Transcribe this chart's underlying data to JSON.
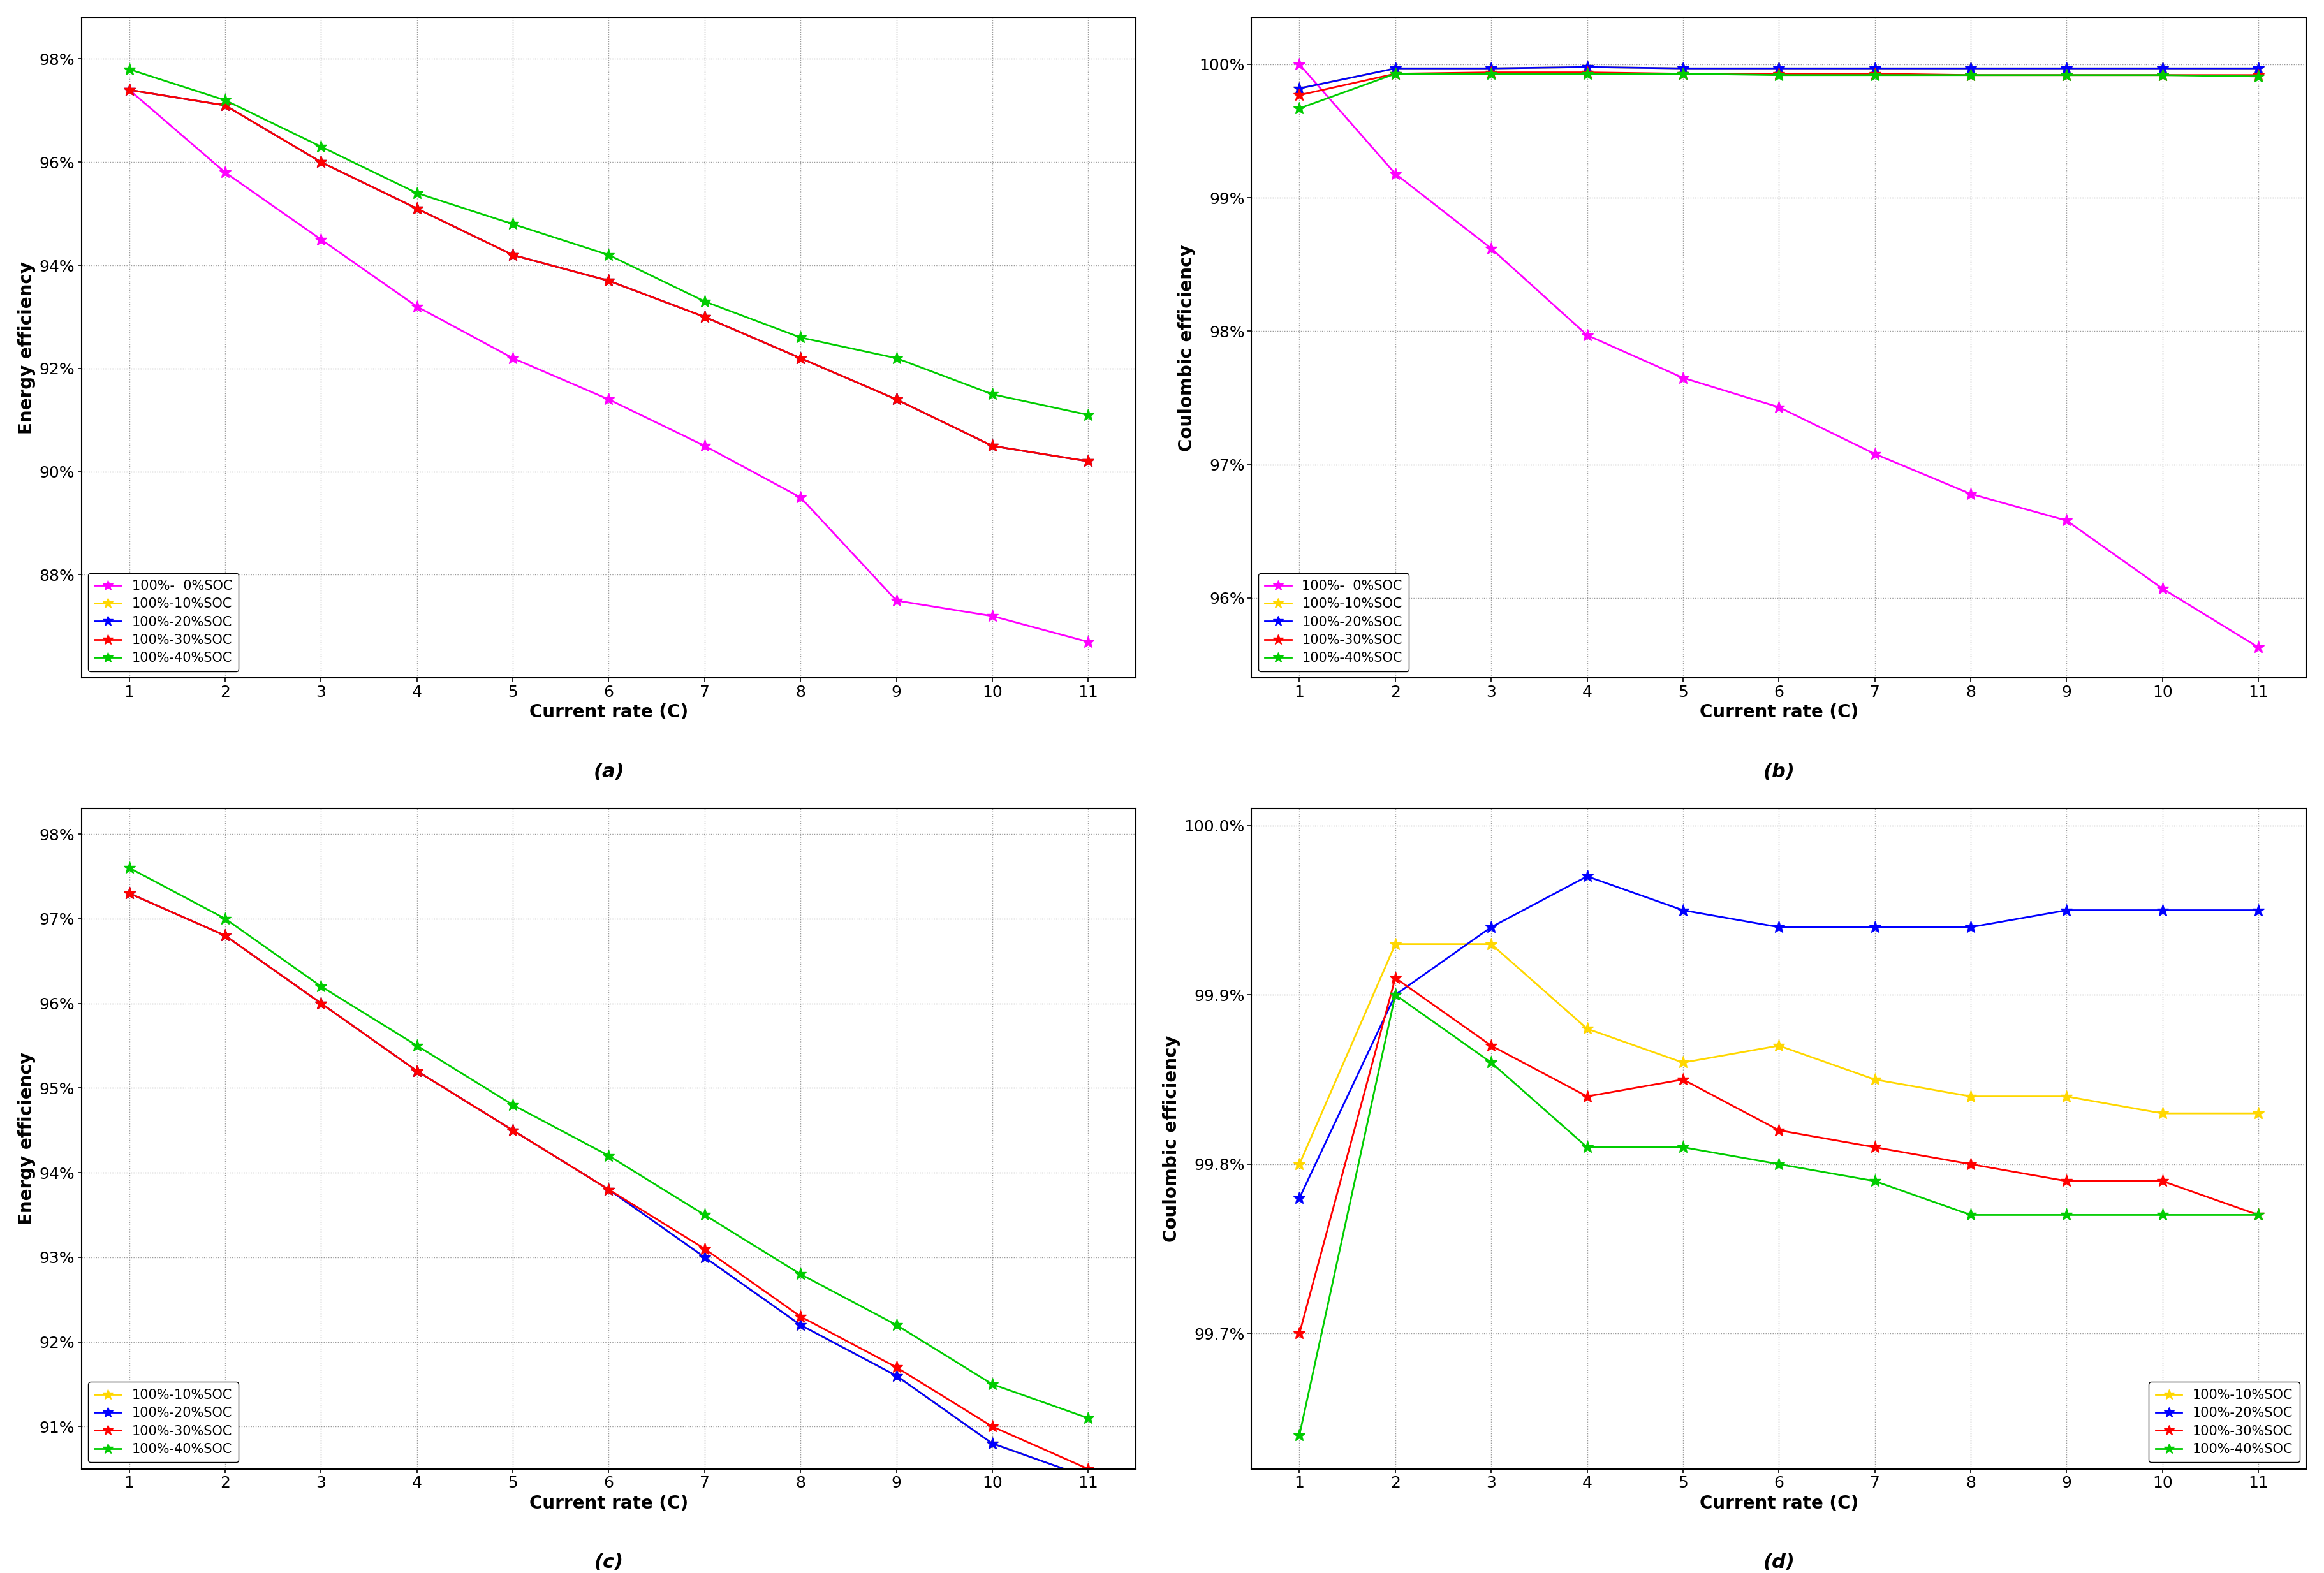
{
  "x": [
    1,
    2,
    3,
    4,
    5,
    6,
    7,
    8,
    9,
    10,
    11
  ],
  "a_series": {
    "magenta": [
      97.4,
      95.8,
      94.5,
      93.2,
      92.2,
      91.4,
      90.5,
      89.5,
      87.5,
      87.2,
      86.7
    ],
    "yellow": [
      97.4,
      97.1,
      96.0,
      95.1,
      94.2,
      93.7,
      93.0,
      92.2,
      91.4,
      90.5,
      90.2
    ],
    "blue": [
      97.4,
      97.1,
      96.0,
      95.1,
      94.2,
      93.7,
      93.0,
      92.2,
      91.4,
      90.5,
      90.2
    ],
    "red": [
      97.4,
      97.1,
      96.0,
      95.1,
      94.2,
      93.7,
      93.0,
      92.2,
      91.4,
      90.5,
      90.2
    ],
    "green": [
      97.8,
      97.2,
      96.3,
      95.4,
      94.8,
      94.2,
      93.3,
      92.6,
      92.2,
      91.5,
      91.1
    ]
  },
  "a_ylim": [
    86.0,
    98.8
  ],
  "a_yticks": [
    88,
    90,
    92,
    94,
    96,
    98
  ],
  "b_series": {
    "magenta": [
      100.0,
      99.18,
      98.62,
      97.97,
      97.65,
      97.43,
      97.08,
      96.78,
      96.58,
      96.07,
      95.63
    ],
    "yellow": [
      99.82,
      99.97,
      99.97,
      99.98,
      99.97,
      99.97,
      99.97,
      99.97,
      99.97,
      99.97,
      99.97
    ],
    "blue": [
      99.82,
      99.97,
      99.97,
      99.98,
      99.97,
      99.97,
      99.97,
      99.97,
      99.97,
      99.97,
      99.97
    ],
    "red": [
      99.77,
      99.93,
      99.94,
      99.94,
      99.93,
      99.93,
      99.93,
      99.92,
      99.92,
      99.92,
      99.92
    ],
    "green": [
      99.67,
      99.93,
      99.93,
      99.93,
      99.93,
      99.92,
      99.92,
      99.92,
      99.92,
      99.92,
      99.91
    ]
  },
  "b_ylim": [
    95.4,
    100.35
  ],
  "b_yticks": [
    96,
    97,
    98,
    99,
    100
  ],
  "c_series": {
    "yellow": [
      97.3,
      96.8,
      96.0,
      95.2,
      94.5,
      93.8,
      93.0,
      92.2,
      91.6,
      90.8,
      90.4
    ],
    "blue": [
      97.3,
      96.8,
      96.0,
      95.2,
      94.5,
      93.8,
      93.0,
      92.2,
      91.6,
      90.8,
      90.4
    ],
    "red": [
      97.3,
      96.8,
      96.0,
      95.2,
      94.5,
      93.8,
      93.1,
      92.3,
      91.7,
      91.0,
      90.5
    ],
    "green": [
      97.6,
      97.0,
      96.2,
      95.5,
      94.8,
      94.2,
      93.5,
      92.8,
      92.2,
      91.5,
      91.1
    ]
  },
  "c_ylim": [
    90.5,
    98.3
  ],
  "c_yticks": [
    91,
    92,
    93,
    94,
    95,
    96,
    97,
    98
  ],
  "d_series": {
    "yellow": [
      99.8,
      99.93,
      99.93,
      99.88,
      99.86,
      99.87,
      99.85,
      99.84,
      99.84,
      99.83,
      99.83
    ],
    "blue": [
      99.78,
      99.9,
      99.94,
      99.97,
      99.95,
      99.94,
      99.94,
      99.94,
      99.95,
      99.95,
      99.95
    ],
    "red": [
      99.7,
      99.91,
      99.87,
      99.84,
      99.85,
      99.82,
      99.81,
      99.8,
      99.79,
      99.79,
      99.77
    ],
    "green": [
      99.64,
      99.9,
      99.86,
      99.81,
      99.81,
      99.8,
      99.79,
      99.77,
      99.77,
      99.77,
      99.77
    ]
  },
  "d_ylim": [
    99.62,
    100.01
  ],
  "d_yticks": [
    99.7,
    99.8,
    99.9,
    100.0
  ],
  "colors": {
    "magenta": "#FF00FF",
    "yellow": "#FFD700",
    "blue": "#0000FF",
    "red": "#FF0000",
    "green": "#00CC00"
  },
  "legend_a": [
    "100%-  0%SOC",
    "100%-10%SOC",
    "100%-20%SOC",
    "100%-30%SOC",
    "100%-40%SOC"
  ],
  "legend_b": [
    "100%-  0%SOC",
    "100%-10%SOC",
    "100%-20%SOC",
    "100%-30%SOC",
    "100%-40%SOC"
  ],
  "legend_c": [
    "100%-10%SOC",
    "100%-20%SOC",
    "100%-30%SOC",
    "100%-40%SOC"
  ],
  "legend_d": [
    "100%-10%SOC",
    "100%-20%SOC",
    "100%-30%SOC",
    "100%-40%SOC"
  ],
  "xlabel": "Current rate (C)",
  "ylabel_energy": "Energy efficiency",
  "ylabel_coulombic": "Coulombic efficiency",
  "label_a": "(a)",
  "label_b": "(b)",
  "label_c": "(c)",
  "label_d": "(d)"
}
